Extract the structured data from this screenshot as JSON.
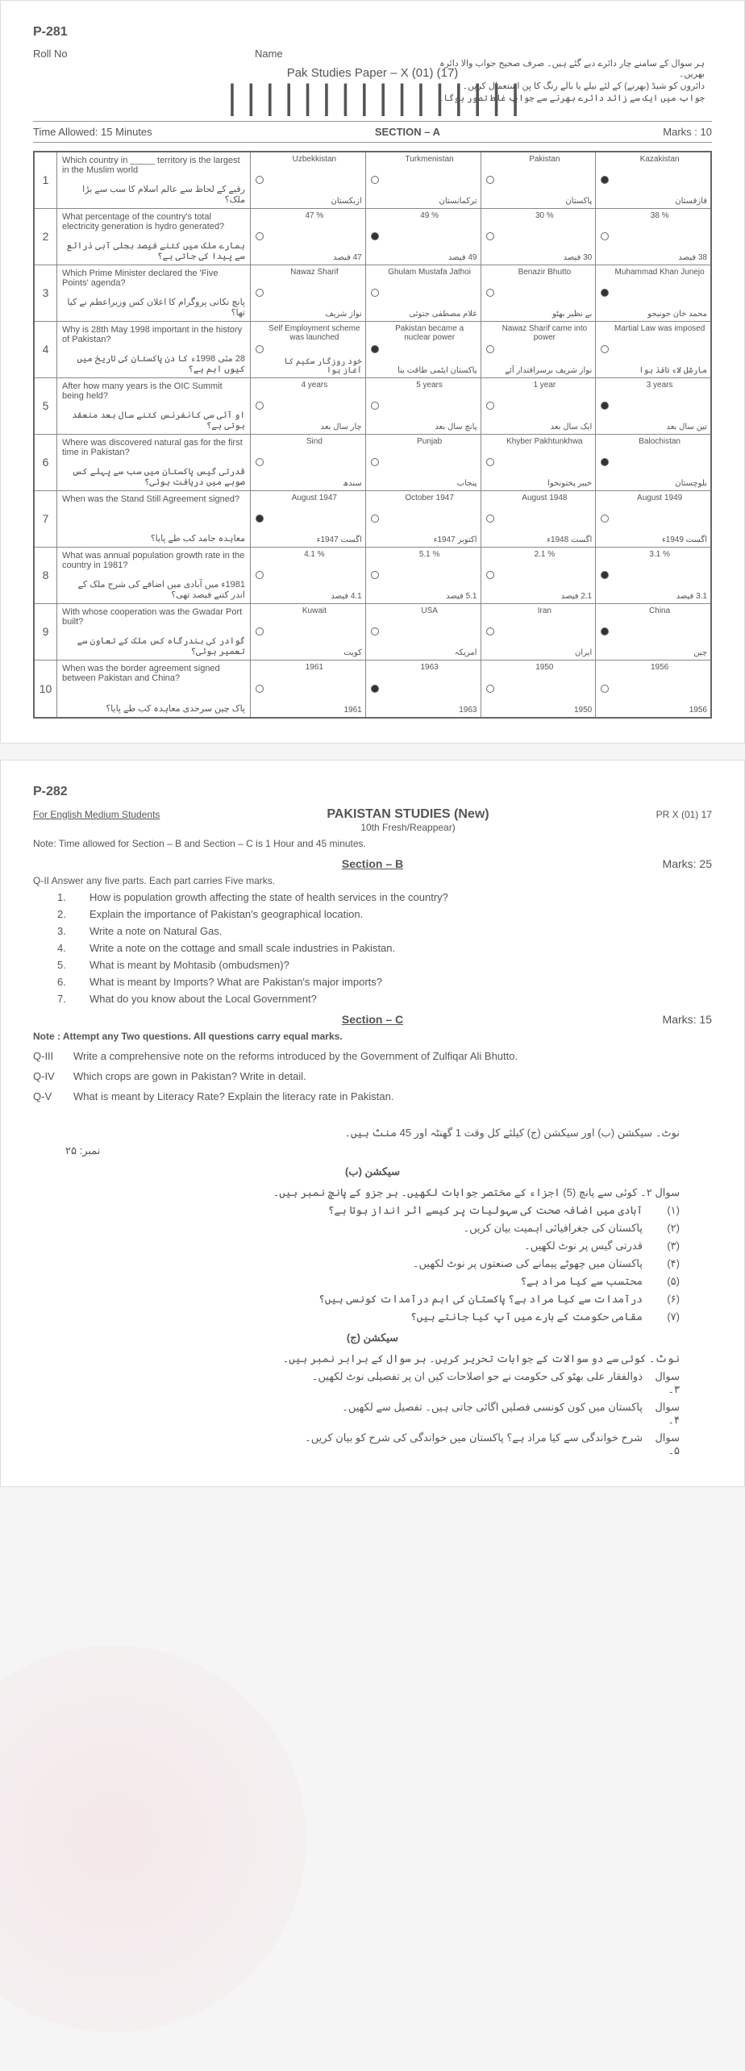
{
  "page1": {
    "code": "P-281",
    "roll_label": "Roll No",
    "name_label": "Name",
    "title": "Pak Studies Paper – X (01) (17)",
    "barcode": "||||||||||||||||",
    "urdu_instructions": [
      "ہر سوال کے سامنے چار دائرے دیے گئے ہیں۔ صرف صحیح جواب والا دائرہ بھریں۔",
      "دائروں کو شیڈ (بھرنے) کے لئے نیلے یا بالے رنگ کا پن استعمال کریں۔",
      "جواب میں ایک سے زائد دائرے بھرنے سے جواب غلط تصور ہوگا۔"
    ],
    "time": "Time Allowed: 15 Minutes",
    "section": "SECTION – A",
    "marks": "Marks : 10",
    "questions": [
      {
        "num": "1",
        "en": "Which country in _____ territory is the largest in the Muslim world",
        "ur": "رقبے کے لحاظ سے عالم اسلام کا سب سے بڑا ملک؟",
        "opts": [
          {
            "en": "Uzbekkistan",
            "ur": "ازبکستان",
            "filled": false
          },
          {
            "en": "Turkmenistan",
            "ur": "ترکمانستان",
            "filled": false
          },
          {
            "en": "Pakistan",
            "ur": "پاکستان",
            "filled": false
          },
          {
            "en": "Kazakistan",
            "ur": "قازقستان",
            "filled": true
          }
        ]
      },
      {
        "num": "2",
        "en": "What percentage of the country's total electricity generation is hydro generated?",
        "ur": "ہمارے ملک میں کتنے فیصد بجلی آبی ذرائع سے پیدا کی جاتی ہے؟",
        "opts": [
          {
            "en": "47 %",
            "ur": "47 فیصد",
            "filled": false
          },
          {
            "en": "49 %",
            "ur": "49 فیصد",
            "filled": true
          },
          {
            "en": "30 %",
            "ur": "30 فیصد",
            "filled": false
          },
          {
            "en": "38 %",
            "ur": "38 فیصد",
            "filled": false
          }
        ]
      },
      {
        "num": "3",
        "en": "Which Prime Minister declared the 'Five Points' agenda?",
        "ur": "پانچ نکاتی پروگرام کا اعلان کس وزیراعظم نے کیا تھا؟",
        "opts": [
          {
            "en": "Nawaz Sharif",
            "ur": "نواز شریف",
            "filled": false
          },
          {
            "en": "Ghulam Mustafa Jathoi",
            "ur": "غلام مصطفی جتوئی",
            "filled": false
          },
          {
            "en": "Benazir Bhutto",
            "ur": "بے نظیر بھٹو",
            "filled": false
          },
          {
            "en": "Muhammad Khan Junejo",
            "ur": "محمد خان جونیجو",
            "filled": true
          }
        ]
      },
      {
        "num": "4",
        "en": "Why is 28th May 1998 important in the history of Pakistan?",
        "ur": "28 مئی 1998ء کا دن پاکستان کی تاریخ میں کیوں اہم ہے؟",
        "opts": [
          {
            "en": "Self Employment scheme was launched",
            "ur": "خود روزگار سکیم کا آغاز ہوا",
            "filled": false
          },
          {
            "en": "Pakistan became a nuclear power",
            "ur": "پاکستان ایٹمی طاقت بنا",
            "filled": true
          },
          {
            "en": "Nawaz Sharif came into power",
            "ur": "نواز شریف برسراقتدار آئے",
            "filled": false
          },
          {
            "en": "Martial Law was imposed",
            "ur": "مارشل لاء نافذ ہوا",
            "filled": false
          }
        ]
      },
      {
        "num": "5",
        "en": "After how many years is the OIC Summit being held?",
        "ur": "او آئی سی کانفرنس کتنے سال بعد منعقد ہوتی ہے؟",
        "opts": [
          {
            "en": "4 years",
            "ur": "چار سال بعد",
            "filled": false
          },
          {
            "en": "5 years",
            "ur": "پانچ سال بعد",
            "filled": false
          },
          {
            "en": "1 year",
            "ur": "ایک سال بعد",
            "filled": false
          },
          {
            "en": "3 years",
            "ur": "تین سال بعد",
            "filled": true
          }
        ]
      },
      {
        "num": "6",
        "en": "Where was discovered natural gas for the first time in Pakistan?",
        "ur": "قدرتی گیس پاکستان میں سب سے پہلے کس صوبے میں دریافت ہوئی؟",
        "opts": [
          {
            "en": "Sind",
            "ur": "سندھ",
            "filled": false
          },
          {
            "en": "Punjab",
            "ur": "پنجاب",
            "filled": false
          },
          {
            "en": "Khyber Pakhtunkhwa",
            "ur": "خیبر پختونخوا",
            "filled": false
          },
          {
            "en": "Balochistan",
            "ur": "بلوچستان",
            "filled": true
          }
        ]
      },
      {
        "num": "7",
        "en": "When was the Stand Still Agreement signed?",
        "ur": "معاہدہ جامد کب طے پایا؟",
        "opts": [
          {
            "en": "August 1947",
            "ur": "اگست 1947ء",
            "filled": true
          },
          {
            "en": "October 1947",
            "ur": "اکتوبر 1947ء",
            "filled": false
          },
          {
            "en": "August 1948",
            "ur": "اگست 1948ء",
            "filled": false
          },
          {
            "en": "August 1949",
            "ur": "اگست 1949ء",
            "filled": false
          }
        ]
      },
      {
        "num": "8",
        "en": "What was annual population growth rate in the country in 1981?",
        "ur": "1981ء میں آبادی میں اضافے کی شرح ملک کے اندر کتنے فیصد تھی؟",
        "opts": [
          {
            "en": "4.1 %",
            "ur": "4.1 فیصد",
            "filled": false
          },
          {
            "en": "5.1 %",
            "ur": "5.1 فیصد",
            "filled": false
          },
          {
            "en": "2.1 %",
            "ur": "2.1 فیصد",
            "filled": false
          },
          {
            "en": "3.1 %",
            "ur": "3.1 فیصد",
            "filled": true
          }
        ]
      },
      {
        "num": "9",
        "en": "With whose cooperation was the Gwadar Port built?",
        "ur": "گوادر کی بندرگاہ کس ملک کے تعاون سے تعمیر ہوئی؟",
        "opts": [
          {
            "en": "Kuwait",
            "ur": "کویت",
            "filled": false
          },
          {
            "en": "USA",
            "ur": "امریکہ",
            "filled": false
          },
          {
            "en": "Iran",
            "ur": "ایران",
            "filled": false
          },
          {
            "en": "China",
            "ur": "چین",
            "filled": true
          }
        ]
      },
      {
        "num": "10",
        "en": "When was the border agreement signed between Pakistan and China?",
        "ur": "پاک چین سرحدی معاہدہ کب طے پایا؟",
        "opts": [
          {
            "en": "1961",
            "ur": "1961",
            "filled": false
          },
          {
            "en": "1963",
            "ur": "1963",
            "filled": true
          },
          {
            "en": "1950",
            "ur": "1950",
            "filled": false
          },
          {
            "en": "1956",
            "ur": "1956",
            "filled": false
          }
        ]
      }
    ]
  },
  "page2": {
    "code": "P-282",
    "pr": "PR X (01) 17",
    "medium": "For English Medium Students",
    "title": "PAKISTAN STUDIES (New)",
    "subtitle": "10th Fresh/Reappear)",
    "note1": "Note:   Time allowed for Section – B and Section – C is 1 Hour and 45 minutes.",
    "sectionB": "Section – B",
    "marksB": "Marks: 25",
    "q2_head": "Q-II    Answer any five parts. Each part carries Five marks.",
    "q2": [
      {
        "n": "1.",
        "t": "How is population growth affecting the state of health services in the country?"
      },
      {
        "n": "2.",
        "t": "Explain the importance of Pakistan's geographical location."
      },
      {
        "n": "3.",
        "t": "Write a note on Natural Gas."
      },
      {
        "n": "4.",
        "t": "Write a note on the cottage and small scale industries in Pakistan."
      },
      {
        "n": "5.",
        "t": "What is meant by Mohtasib (ombudsmen)?"
      },
      {
        "n": "6.",
        "t": "What is meant by Imports? What are Pakistan's major imports?"
      },
      {
        "n": "7.",
        "t": "What do you know about the Local Government?"
      }
    ],
    "sectionC": "Section – C",
    "marksC": "Marks: 15",
    "noteC": "Note : Attempt any Two questions. All questions carry equal marks.",
    "qC": [
      {
        "lbl": "Q-III",
        "t": "Write a comprehensive note on the reforms introduced by the Government of Zulfiqar Ali Bhutto."
      },
      {
        "lbl": "Q-IV",
        "t": "Which crops are gown in Pakistan? Write in detail."
      },
      {
        "lbl": "Q-V",
        "t": "What is meant by Literacy Rate? Explain the literacy rate in Pakistan."
      }
    ],
    "urdu": {
      "note": "نوٹ۔   سیکشن (ب) اور سیکشن (ج) کیلئے کل وقت 1 گھنٹہ اور 45 منٹ ہیں۔",
      "nambar": "نمبر: ۲۵",
      "secB": "سیکشن (ب)",
      "q2head": "سوال ۲۔   کوئی سے پانچ (5) اجزاء کے مختصر جوابات لکھیں۔ ہر جزو کے پانچ نمبر ہیں۔",
      "q2items": [
        {
          "n": "(۱)",
          "t": "آبادی میں اضافہ صحت کی سہولیات پر کیسے اثر انداز ہوتا ہے؟"
        },
        {
          "n": "(۲)",
          "t": "پاکستان کی جغرافیائی اہمیت بیان کریں۔"
        },
        {
          "n": "(۳)",
          "t": "قدرتی گیس پر نوٹ لکھیں۔"
        },
        {
          "n": "(۴)",
          "t": "پاکستان میں چھوٹے پیمانے کی صنعتوں پر نوٹ لکھیں۔"
        },
        {
          "n": "(۵)",
          "t": "محتسب سے کیا مراد ہے؟"
        },
        {
          "n": "(۶)",
          "t": "درآمدات سے کیا مراد ہے؟ پاکستان کی اہم درآمدات کونسی ہیں؟"
        },
        {
          "n": "(۷)",
          "t": "مقامی حکومت کے بارے میں آپ کیا جانتے ہیں؟"
        }
      ],
      "secC": "سیکشن (ج)",
      "noteC": "نوٹ۔   کوئی سے دو سوالات کے جوابات تحریر کریں۔ ہر سوال کے برابر نمبر ہیں۔",
      "qC": [
        {
          "n": "سوال ۳۔",
          "t": "ذوالفقار علی بھٹو کی حکومت نے جو اصلاحات کیں ان پر تفصیلی نوٹ لکھیں۔"
        },
        {
          "n": "سوال ۴۔",
          "t": "پاکستان میں کون کونسی فصلیں اگائی جاتی ہیں۔ تفصیل سے لکھیں۔"
        },
        {
          "n": "سوال ۵۔",
          "t": "شرح خواندگی سے کیا مراد ہے؟ پاکستان میں خواندگی کی شرح کو بیان کریں۔"
        }
      ]
    }
  }
}
